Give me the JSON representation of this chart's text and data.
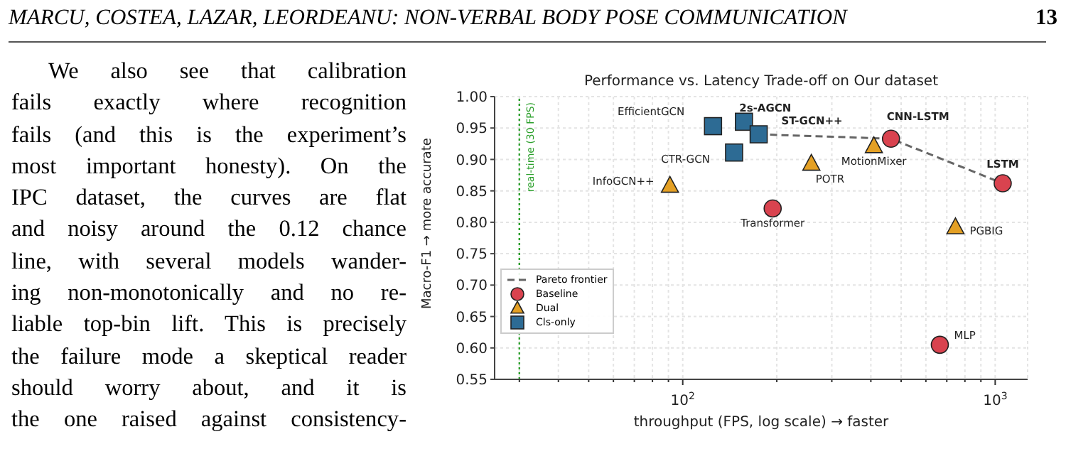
{
  "chart_data": {
    "type": "scatter",
    "title": "Performance vs. Latency Trade-off on Our dataset",
    "xlabel": "throughput (FPS, log scale) → faster",
    "ylabel": "Macro-F1 → more accurate",
    "log": "x",
    "grid": true,
    "legend": "bottom left",
    "xlim": [
      25,
      1270
    ],
    "ylim": [
      0.55,
      1.0
    ],
    "xticks": [
      {
        "value": 30,
        "label": null
      },
      {
        "value": 40,
        "label": null
      },
      {
        "value": 50,
        "label": null
      },
      {
        "value": 60,
        "label": null
      },
      {
        "value": 70,
        "label": null
      },
      {
        "value": 80,
        "label": null
      },
      {
        "value": 90,
        "label": null
      },
      {
        "value": 100,
        "label": "10$^{2}$"
      },
      {
        "value": 200,
        "label": null
      },
      {
        "value": 300,
        "label": null
      },
      {
        "value": 400,
        "label": null
      },
      {
        "value": 500,
        "label": null
      },
      {
        "value": 600,
        "label": null
      },
      {
        "value": 700,
        "label": null
      },
      {
        "value": 800,
        "label": null
      },
      {
        "value": 900,
        "label": null
      },
      {
        "value": 1000,
        "label": "10$^{3}$"
      }
    ],
    "yticks": [
      0.55,
      {
        "value": 0.6,
        "label": "0.60"
      },
      0.65,
      {
        "value": 0.7,
        "label": "0.70"
      },
      0.75,
      {
        "value": 0.8,
        "label": "0.80"
      },
      0.85,
      {
        "value": 0.9,
        "label": "0.90"
      },
      0.95,
      {
        "value": 1.0,
        "label": "1.00"
      }
    ],
    "series": [
      {
        "name": "Pareto frontier",
        "type": "line",
        "color": "#666666",
        "line_style": "dashed",
        "marker": "none",
        "x": [
          175,
          464,
          1057
        ],
        "values": [
          0.94,
          0.933,
          0.862
        ]
      },
      {
        "name": "Baseline",
        "type": "scatter",
        "color": "#d9434f",
        "marker": "circle",
        "x": [
          464,
          1057,
          194,
          665
        ],
        "values": [
          0.933,
          0.862,
          0.822,
          0.605
        ]
      },
      {
        "name": "Dual",
        "type": "scatter",
        "color": "#e4a024",
        "marker": "triangle",
        "x": [
          409,
          258,
          91,
          746
        ],
        "values": [
          0.921,
          0.893,
          0.858,
          0.792
        ]
      },
      {
        "name": "Cls-only",
        "type": "scatter",
        "color": "#2d6b94",
        "marker": "square",
        "x": [
          125,
          157,
          175,
          146
        ],
        "values": [
          0.953,
          0.96,
          0.94,
          0.911
        ]
      }
    ],
    "ref_lines": [
      {
        "axis": "x",
        "value": 30,
        "label": "real-time (30 FPS)",
        "color": "#2ca02c",
        "line_style": "dotted"
      }
    ],
    "annotations": [
      "MARCU, COSTEA, LAZAR, LEORDEANU: NON-VERBAL BODY POSE COMMUNICATION",
      "13",
      "We also see that calibration",
      "fails exactly where recognition",
      "fails (and this is the experiment’s",
      "most important honesty).  On the",
      "IPC dataset, the curves are flat",
      "and noisy around the 0.12 chance",
      "line, with several models wander-",
      "ing non-monotonically and no re-",
      "liable top-bin lift. This is precisely",
      "the failure mode a skeptical reader",
      "should worry about, and it is",
      "the one raised against consistency-",
      {
        "text": "EfficientGCN",
        "x": 125,
        "y": 0.953
      },
      {
        "text": "2s-AGCN",
        "x": 157,
        "y": 0.96
      },
      {
        "text": "ST-GCN++",
        "x": 175,
        "y": 0.94
      },
      {
        "text": "CTR-GCN",
        "x": 146,
        "y": 0.911
      },
      {
        "text": "CNN-LSTM",
        "x": 464,
        "y": 0.933
      },
      {
        "text": "MotionMixer",
        "x": 409,
        "y": 0.921
      },
      {
        "text": "POTR",
        "x": 258,
        "y": 0.893
      },
      {
        "text": "InfoGCN++",
        "x": 91,
        "y": 0.858
      },
      {
        "text": "LSTM",
        "x": 1057,
        "y": 0.862
      },
      {
        "text": "Transformer",
        "x": 194,
        "y": 0.822
      },
      {
        "text": "PGBIG",
        "x": 746,
        "y": 0.792
      },
      {
        "text": "MLP",
        "x": 665,
        "y": 0.605
      }
    ]
  }
}
